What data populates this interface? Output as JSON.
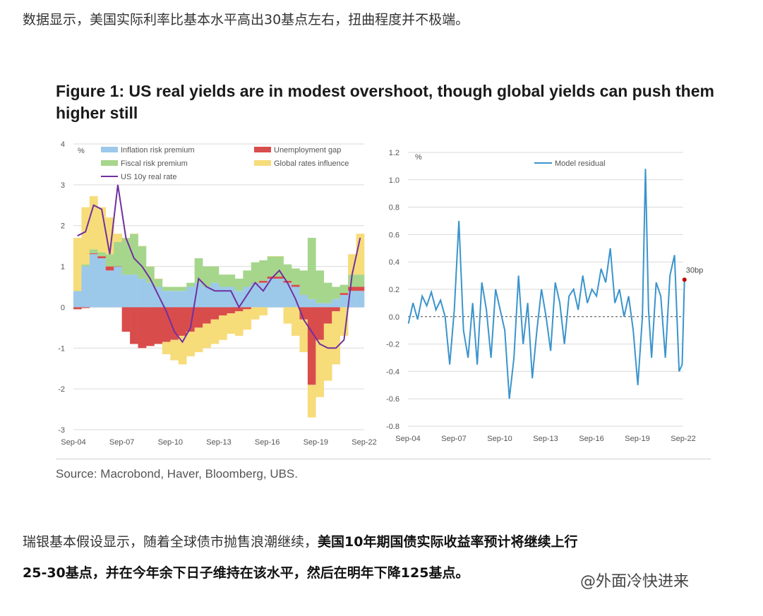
{
  "intro_text": "数据显示，美国实际利率比基本水平高出30基点左右，扭曲程度并不极端。",
  "figure_title": "Figure 1: US real yields are in modest overshoot, though global yields can push them higher still",
  "source": "Source: Macrobond, Haver, Bloomberg, UBS.",
  "para1_normal": "瑞银基本假设显示，随着全球债市抛售浪潮继续，",
  "para1_bold": "美国10年期国债实际收益率预计将继续上行",
  "para2_bold": "25-30基点，并在今年余下日子维持在该水平，然后在明年下降125基点。",
  "watermark": "@外面冷快进来",
  "colors": {
    "inflation": "#9cc9ea",
    "fiscal": "#a6d68c",
    "unemployment": "#d94c4c",
    "global": "#f7dc7a",
    "real_rate": "#7030a0",
    "residual": "#3a94cc",
    "grid": "#d9d9d9"
  },
  "chart_data": [
    {
      "type": "area",
      "unit_label": "%",
      "x_ticks": [
        "Sep-04",
        "Sep-07",
        "Sep-10",
        "Sep-13",
        "Sep-16",
        "Sep-19",
        "Sep-22"
      ],
      "y_ticks": [
        "4",
        "3",
        "2",
        "1",
        "0",
        "-1",
        "-2",
        "-3"
      ],
      "ylim": [
        -3,
        4
      ],
      "grid": true,
      "legend_position": "top",
      "x": [
        2004.7,
        2005.5,
        2006.5,
        2007.5,
        2008.0,
        2008.5,
        2009.0,
        2009.5,
        2010.0,
        2010.5,
        2011.0,
        2011.5,
        2012.0,
        2012.5,
        2013.0,
        2013.5,
        2014.0,
        2014.5,
        2015.0,
        2015.5,
        2016.0,
        2016.5,
        2017.0,
        2017.5,
        2018.0,
        2018.5,
        2019.0,
        2019.5,
        2020.0,
        2020.3,
        2020.6,
        2021.0,
        2021.5,
        2022.0,
        2022.5,
        2022.7
      ],
      "series": [
        {
          "name": "Inflation risk premium",
          "values": [
            0.4,
            1.0,
            1.3,
            1.2,
            0.9,
            1.0,
            0.8,
            0.8,
            0.7,
            0.6,
            0.5,
            0.4,
            0.4,
            0.4,
            0.5,
            0.6,
            0.5,
            0.6,
            0.5,
            0.5,
            0.4,
            0.5,
            0.6,
            0.6,
            0.7,
            0.7,
            0.6,
            0.5,
            0.3,
            0.2,
            0.1,
            0.1,
            0.2,
            0.3,
            0.4,
            0.4
          ]
        },
        {
          "name": "Unemployment gap",
          "values": [
            -0.05,
            -0.02,
            0.02,
            0.05,
            0.1,
            0.0,
            -0.6,
            -0.9,
            -1.0,
            -0.95,
            -0.9,
            -0.85,
            -0.8,
            -0.7,
            -0.6,
            -0.5,
            -0.4,
            -0.3,
            -0.2,
            -0.15,
            -0.1,
            -0.05,
            0.0,
            0.05,
            0.05,
            0.05,
            0.05,
            0.05,
            -0.3,
            -1.9,
            -0.8,
            -0.4,
            -0.1,
            0.05,
            0.1,
            0.1
          ]
        },
        {
          "name": "Fiscal risk premium",
          "values": [
            0.0,
            0.05,
            0.1,
            0.1,
            0.3,
            0.6,
            0.9,
            1.0,
            0.8,
            0.4,
            0.2,
            0.1,
            0.1,
            0.1,
            0.1,
            0.6,
            0.5,
            0.4,
            0.3,
            0.3,
            0.3,
            0.4,
            0.5,
            0.5,
            0.5,
            0.5,
            0.4,
            0.4,
            0.6,
            1.5,
            0.8,
            0.5,
            0.3,
            0.2,
            0.3,
            0.3
          ]
        },
        {
          "name": "Global rates influence",
          "values": [
            1.3,
            1.4,
            1.3,
            1.1,
            0.9,
            0.2,
            0.0,
            0.0,
            0.0,
            0.0,
            0.0,
            -0.3,
            -0.5,
            -0.7,
            -0.6,
            -0.6,
            -0.6,
            -0.6,
            -0.6,
            -0.5,
            -0.6,
            -0.5,
            -0.3,
            -0.2,
            0.0,
            0.0,
            -0.4,
            -0.7,
            -0.8,
            -0.8,
            -1.4,
            -1.4,
            -1.3,
            -0.7,
            0.5,
            1.0
          ]
        },
        {
          "name": "US 10y real rate",
          "values": [
            1.75,
            1.85,
            2.5,
            2.4,
            1.3,
            3.0,
            1.7,
            1.2,
            1.0,
            0.7,
            0.3,
            -0.1,
            -0.6,
            -0.85,
            -0.5,
            0.7,
            0.5,
            0.4,
            0.4,
            0.4,
            0.0,
            0.3,
            0.6,
            0.4,
            0.7,
            0.9,
            0.6,
            0.2,
            -0.3,
            -0.6,
            -0.9,
            -1.0,
            -1.0,
            -0.8,
            0.8,
            1.7
          ]
        }
      ]
    },
    {
      "type": "line",
      "unit_label": "%",
      "x_ticks": [
        "Sep-04",
        "Sep-07",
        "Sep-10",
        "Sep-13",
        "Sep-16",
        "Sep-19",
        "Sep-22"
      ],
      "y_ticks": [
        "1.2",
        "1.0",
        "0.8",
        "0.6",
        "0.4",
        "0.2",
        "0.0",
        "-0.2",
        "-0.4",
        "-0.6",
        "-0.8"
      ],
      "ylim": [
        -0.8,
        1.2
      ],
      "grid": true,
      "legend_position": "top",
      "annotation": "30bp",
      "x": [
        2004.7,
        2005.0,
        2005.3,
        2005.6,
        2005.9,
        2006.2,
        2006.5,
        2006.8,
        2007.1,
        2007.4,
        2007.7,
        2008.0,
        2008.3,
        2008.6,
        2008.9,
        2009.2,
        2009.5,
        2009.8,
        2010.1,
        2010.4,
        2010.7,
        2011.0,
        2011.3,
        2011.6,
        2011.9,
        2012.2,
        2012.5,
        2012.8,
        2013.1,
        2013.4,
        2013.7,
        2014.0,
        2014.3,
        2014.6,
        2014.9,
        2015.2,
        2015.5,
        2015.8,
        2016.1,
        2016.4,
        2016.7,
        2017.0,
        2017.3,
        2017.6,
        2017.9,
        2018.2,
        2018.5,
        2018.8,
        2019.1,
        2019.4,
        2019.7,
        2020.0,
        2020.2,
        2020.4,
        2020.6,
        2020.9,
        2021.2,
        2021.5,
        2021.8,
        2022.1,
        2022.4,
        2022.6,
        2022.75
      ],
      "series": [
        {
          "name": "Model residual",
          "values": [
            -0.05,
            0.1,
            -0.02,
            0.15,
            0.08,
            0.18,
            0.05,
            0.12,
            0.0,
            -0.35,
            0.05,
            0.7,
            -0.1,
            -0.3,
            0.1,
            -0.35,
            0.25,
            0.05,
            -0.3,
            0.2,
            0.05,
            -0.1,
            -0.6,
            -0.3,
            0.3,
            -0.2,
            0.1,
            -0.45,
            -0.1,
            0.2,
            0.0,
            -0.25,
            0.25,
            0.1,
            -0.2,
            0.15,
            0.2,
            0.05,
            0.3,
            0.1,
            0.2,
            0.15,
            0.35,
            0.25,
            0.5,
            0.1,
            0.2,
            0.0,
            0.15,
            -0.1,
            -0.5,
            0.0,
            1.08,
            0.05,
            -0.3,
            0.25,
            0.15,
            -0.3,
            0.3,
            0.45,
            -0.4,
            -0.35,
            0.27
          ]
        }
      ]
    }
  ]
}
